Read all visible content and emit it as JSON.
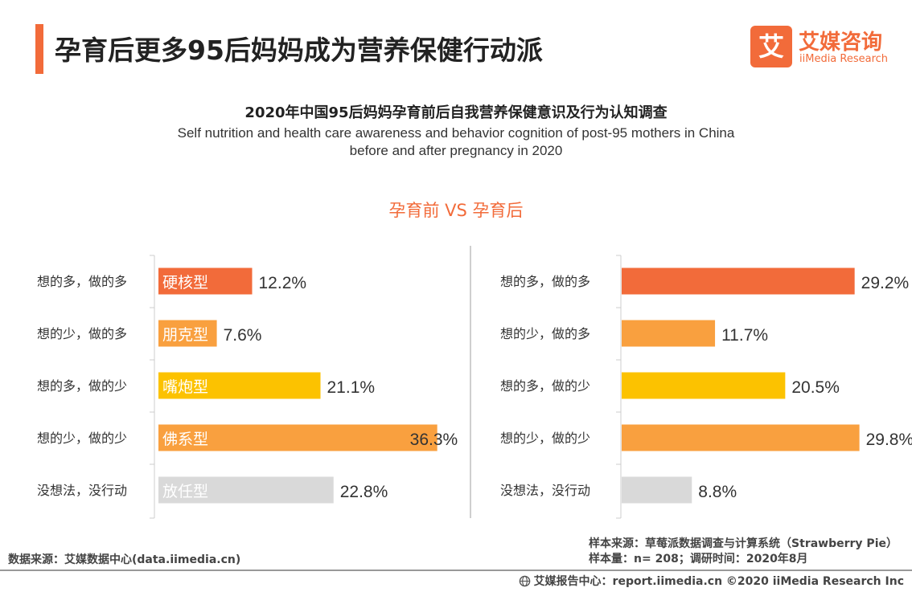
{
  "header": {
    "title": "孕育后更多95后妈妈成为营养保健行动派",
    "logo_cn": "艾媒咨询",
    "logo_en": "iiMedia Research",
    "logo_mark": "艾"
  },
  "chart_data": {
    "type": "bar",
    "orientation": "horizontal",
    "title": "2020年中国95后妈妈孕育前后自我营养保健意识及行为认知调查",
    "subtitle_line1": "Self nutrition and health care awareness and behavior cognition of post-95 mothers in China",
    "subtitle_line2": "before and after pregnancy in 2020",
    "comparison_label": "孕育前 VS 孕育后",
    "categories": [
      "想的多，做的多",
      "想的少，做的多",
      "想的多，做的少",
      "想的少，做的少",
      "没想法，没行动"
    ],
    "types": [
      "硬核型",
      "朋克型",
      "嘴炮型",
      "佛系型",
      "放任型"
    ],
    "colors": [
      "#f26b3a",
      "#f9a03f",
      "#fcc200",
      "#f9a03f",
      "#d9d9d9"
    ],
    "series": [
      {
        "name": "孕育前",
        "values": [
          12.2,
          7.6,
          21.1,
          36.3,
          22.8
        ]
      },
      {
        "name": "孕育后",
        "values": [
          29.2,
          11.7,
          20.5,
          29.8,
          8.8
        ]
      }
    ],
    "value_labels": [
      [
        "12.2%",
        "7.6%",
        "21.1%",
        "36.3%",
        "22.8%"
      ],
      [
        "29.2%",
        "11.7%",
        "20.5%",
        "29.8%",
        "8.8%"
      ]
    ],
    "unit": "%",
    "grid": false
  },
  "footer": {
    "source": "数据来源：艾媒数据中心(data.iimedia.cn)",
    "sample_source": "样本来源：草莓派数据调查与计算系统（Strawberry Pie）",
    "sample_size": "样本量：n= 208；调研时间：2020年8月",
    "copyright": "艾媒报告中心：report.iimedia.cn   ©2020  iiMedia Research  Inc"
  }
}
